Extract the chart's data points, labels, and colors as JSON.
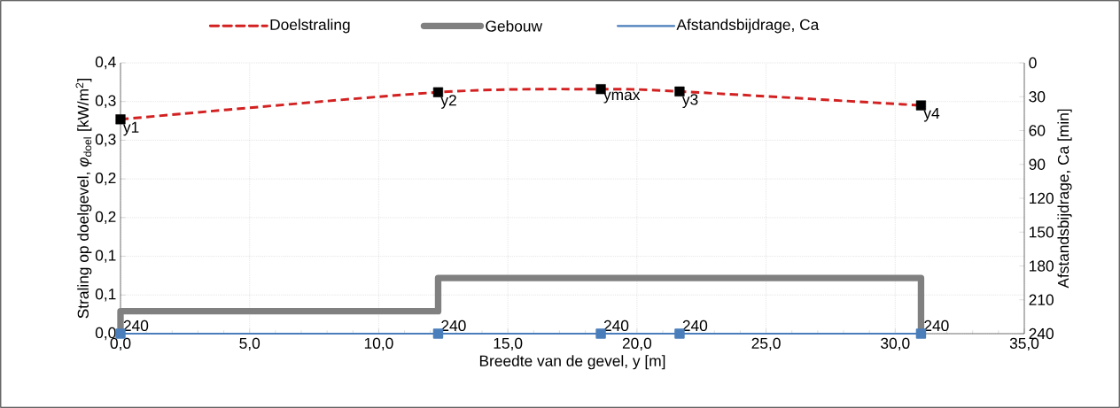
{
  "chart_data": {
    "type": "line",
    "xlabel": "Breedte van de gevel, y [m]",
    "ylabel": "Straling op doelgevel, *φ*$_{doel}$ [kW/m$^{2}$]",
    "y2label": "Afstandsbijdrage,  Ca [min]",
    "xlim": [
      0,
      35
    ],
    "xticks": [
      {
        "value": 0,
        "label": "0,0"
      },
      {
        "value": 5,
        "label": "5,0"
      },
      {
        "value": 10,
        "label": "10,0"
      },
      {
        "value": 15,
        "label": "15,0"
      },
      {
        "value": 20,
        "label": "20,0"
      },
      {
        "value": 25,
        "label": "25,0"
      },
      {
        "value": 30,
        "label": "30,0"
      },
      {
        "value": 35,
        "label": "35,0"
      }
    ],
    "ylim": [
      0,
      0.35
    ],
    "yticks": [
      {
        "value": 0,
        "label": "0,0"
      },
      {
        "value": 0.05,
        "label": "0,1"
      },
      {
        "value": 0.1,
        "label": "0,1"
      },
      {
        "value": 0.15,
        "label": "0,2"
      },
      {
        "value": 0.2,
        "label": "0,2"
      },
      {
        "value": 0.25,
        "label": "0,3"
      },
      {
        "value": 0.3,
        "label": "0,3"
      },
      {
        "value": 0.35,
        "label": "0,4"
      }
    ],
    "y2lim": [
      240,
      0
    ],
    "y2ticks": [
      0,
      30,
      60,
      90,
      120,
      150,
      180,
      210,
      240
    ],
    "grid": true,
    "legend": "top",
    "series": [
      {
        "name": "Doelstraling",
        "color": "#d32020",
        "line_style": "dashed",
        "marker": "none",
        "x": [
          0,
          12.3,
          18.6,
          21.65,
          31.0
        ],
        "values": [
          0.277,
          0.312,
          0.316,
          0.313,
          0.295
        ]
      },
      {
        "name": "Gebouw",
        "color": "#808080",
        "x": [
          0,
          0,
          12.3,
          12.3,
          31.0,
          31.0
        ],
        "values": [
          0,
          0.029,
          0.029,
          0.072,
          0.072,
          0
        ]
      },
      {
        "name": "Afstandsbijdrage, Ca",
        "color": "#4a7ebb",
        "axis": "y2",
        "marker": "square",
        "data_labels": true,
        "x": [
          0,
          12.3,
          18.6,
          21.65,
          31.0
        ],
        "values": [
          240,
          240,
          240,
          240,
          240
        ]
      },
      {
        "type": "scatter",
        "color": "#000000",
        "marker": "square",
        "x": [
          0,
          12.3,
          18.6,
          21.65,
          31.0
        ],
        "values": [
          0.277,
          0.312,
          0.316,
          0.313,
          0.295
        ]
      }
    ],
    "annotations": [
      {
        "text": "y1",
        "x": 0,
        "y": 0.277
      },
      {
        "text": "y2",
        "x": 12.3,
        "y": 0.312
      },
      {
        "text": "ymax",
        "x": 18.6,
        "y": 0.316
      },
      {
        "text": "y3",
        "x": 21.65,
        "y": 0.313
      },
      {
        "text": "y4",
        "x": 31.0,
        "y": 0.295
      }
    ]
  }
}
